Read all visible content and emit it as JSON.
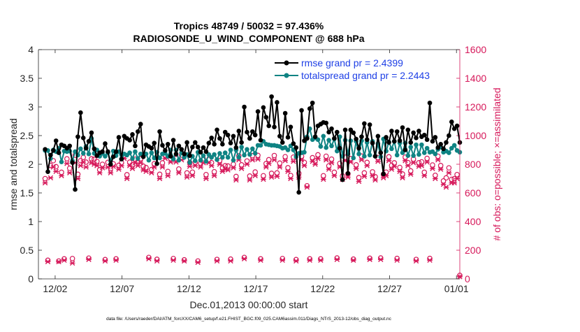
{
  "chart_data": {
    "type": "line",
    "title_line1": "Tropics 48749 / 50032 = 97.436%",
    "title_line2": "RADIOSONDE_U_WIND_COMPONENT @ 688 hPa",
    "xlabel": "Dec.01,2013 00:00:00 start",
    "ylabel_left": "rmse and totalspread",
    "ylabel_right": "# of obs: o=possible; ×=assimilated",
    "footer": "data file: /Users/raeder/DAI/ATM_forcXX/CAM6_setup/f.e21.FHIST_BGC.f09_025.CAM6assim.011/Diags_NTrS_2013-12/obs_diag_output.nc",
    "xlim": [
      0,
      31.5
    ],
    "ylim_left": [
      0,
      4
    ],
    "ylim_right": [
      0,
      1600
    ],
    "yticks_left": [
      0,
      0.5,
      1,
      1.5,
      2,
      2.5,
      3,
      3.5,
      4
    ],
    "ytick_labels_left": [
      "0",
      "0.5",
      "1",
      "1.5",
      "2",
      "2.5",
      "3",
      "3.5",
      "4"
    ],
    "yticks_right": [
      0,
      200,
      400,
      600,
      800,
      1000,
      1200,
      1400,
      1600
    ],
    "ytick_labels_right": [
      "0",
      "200",
      "400",
      "600",
      "800",
      "1000",
      "1200",
      "1400",
      "1600"
    ],
    "xticks": [
      1.25,
      6.25,
      11.25,
      16.25,
      21.25,
      26.25,
      31.25
    ],
    "xtick_labels": [
      "12/02",
      "12/07",
      "12/12",
      "12/17",
      "12/22",
      "12/27",
      "01/01"
    ],
    "legend": [
      "rmse grand pr = 2.4399",
      "totalspread grand pr = 2.2443"
    ],
    "colors": {
      "rmse": "#000000",
      "spread": "#0f8383",
      "obs": "#d6185a",
      "legend_text": "#1f40e6",
      "axis": "#262626"
    },
    "series": [
      {
        "name": "rmse",
        "values": [
          2.26,
          1.87,
          2.16,
          2.24,
          2.41,
          2.2,
          2.34,
          2.32,
          2.28,
          2.32,
          2.03,
          1.56,
          2.48,
          2.9,
          2.46,
          2.28,
          2.4,
          2.55,
          2.27,
          2.15,
          2.2,
          2.22,
          2.36,
          2.22,
          2.0,
          2.13,
          2.22,
          2.47,
          2.09,
          2.49,
          2.45,
          2.42,
          2.52,
          2.32,
          2.57,
          2.7,
          2.13,
          2.34,
          2.31,
          2.28,
          2.37,
          2.01,
          2.57,
          2.33,
          2.24,
          2.35,
          2.14,
          2.42,
          2.18,
          2.32,
          2.26,
          2.18,
          2.38,
          2.15,
          2.3,
          2.38,
          2.3,
          2.21,
          2.29,
          2.22,
          2.37,
          2.46,
          2.35,
          2.6,
          2.45,
          2.35,
          2.56,
          2.51,
          2.37,
          2.49,
          2.29,
          2.58,
          2.38,
          3.0,
          2.56,
          2.45,
          2.57,
          2.51,
          2.92,
          2.42,
          2.99,
          2.82,
          2.67,
          3.18,
          2.65,
          3.08,
          2.49,
          2.38,
          2.89,
          2.47,
          2.65,
          2.36,
          2.29,
          1.51,
          2.94,
          2.41,
          2.45,
          2.97,
          3.07,
          2.48,
          2.67,
          2.7,
          2.73,
          2.72,
          2.56,
          2.62,
          2.45,
          2.56,
          2.28,
          1.73,
          2.6,
          1.84,
          2.6,
          2.55,
          2.44,
          2.28,
          2.48,
          2.71,
          2.43,
          2.69,
          2.37,
          2.14,
          2.49,
          2.2,
          1.83,
          2.47,
          2.38,
          2.58,
          2.4,
          2.57,
          2.41,
          2.64,
          2.25,
          2.6,
          2.38,
          2.55,
          2.46,
          2.58,
          2.48,
          2.51,
          2.43,
          3.07,
          2.4,
          2.47,
          2.29,
          2.35,
          2.27,
          2.38,
          2.5,
          2.74,
          2.62,
          2.67,
          2.38
        ]
      },
      {
        "name": "totalspread",
        "values": [
          2.24,
          2.24,
          2.1,
          2.25,
          2.22,
          2.28,
          2.04,
          2.23,
          2.22,
          2.23,
          2.06,
          2.22,
          2.16,
          2.27,
          2.19,
          2.31,
          2.18,
          2.45,
          2.19,
          2.25,
          2.14,
          2.19,
          2.14,
          2.2,
          2.06,
          2.23,
          2.15,
          2.22,
          2.09,
          2.18,
          2.16,
          2.2,
          2.1,
          2.22,
          2.1,
          2.18,
          2.14,
          2.18,
          2.07,
          2.2,
          2.11,
          2.21,
          2.11,
          2.18,
          2.19,
          2.14,
          2.25,
          2.09,
          2.25,
          2.07,
          2.2,
          2.12,
          2.17,
          2.03,
          2.14,
          2.06,
          2.21,
          2.07,
          2.15,
          2.05,
          2.17,
          2.12,
          2.17,
          2.08,
          2.19,
          2.12,
          2.2,
          2.12,
          2.25,
          2.07,
          2.25,
          2.12,
          2.3,
          2.16,
          2.26,
          2.17,
          2.27,
          2.19,
          2.33,
          2.33,
          2.4,
          2.35,
          2.34,
          2.33,
          2.33,
          2.32,
          2.31,
          2.28,
          2.29,
          2.25,
          2.32,
          2.25,
          2.13,
          2.19,
          2.2,
          2.21,
          2.48,
          2.62,
          2.43,
          2.46,
          2.43,
          2.31,
          2.49,
          2.29,
          2.42,
          2.32,
          2.44,
          2.23,
          2.48,
          2.14,
          2.42,
          2.18,
          2.41,
          2.11,
          2.4,
          2.18,
          2.41,
          2.14,
          2.38,
          2.16,
          2.4,
          2.14,
          2.36,
          2.13,
          2.44,
          2.23,
          2.39,
          2.27,
          2.4,
          2.16,
          2.37,
          2.2,
          2.37,
          2.15,
          2.3,
          2.15,
          2.34,
          2.17,
          2.34,
          2.2,
          2.28,
          2.21,
          2.22,
          2.18,
          2.26,
          2.3,
          2.21,
          2.23,
          2.2,
          2.28,
          2.33,
          2.24,
          2.21
        ]
      },
      {
        "name": "obs_possible",
        "marker": "o",
        "values": [
          700,
          130,
          792,
          825,
          783,
          125,
          744,
          140,
          838,
          772,
          142,
          863,
          730,
          825,
          848,
          815,
          145,
          838,
          835,
          820,
          762,
          800,
          135,
          813,
          770,
          803,
          140,
          793,
          811,
          863,
          727,
          815,
          797,
          836,
          818,
          838,
          787,
          777,
          150,
          763,
          804,
          137,
          730,
          810,
          865,
          750,
          840,
          142,
          840,
          767,
          864,
          133,
          740,
          813,
          745,
          814,
          125,
          807,
          838,
          728,
          833,
          811,
          748,
          136,
          826,
          776,
          790,
          788,
          138,
          800,
          715,
          859,
          796,
          150,
          823,
          718,
          860,
          746,
          862,
          140,
          720,
          805,
          832,
          737,
          861,
          740,
          808,
          142,
          853,
          776,
          722,
          850,
          135,
          737,
          856,
          813,
          650,
          140,
          846,
          825,
          866,
          140,
          720,
          856,
          789,
          836,
          744,
          146,
          806,
          719,
          849,
          734,
          840,
          138,
          796,
          707,
          857,
          740,
          813,
          144,
          747,
          713,
          847,
          146,
          731,
          745,
          852,
          792,
          810,
          143,
          778,
          732,
          850,
          812,
          754,
          836,
          136,
          811,
          817,
          744,
          841,
          143,
          795,
          723,
          856,
          791,
          684,
          705,
          775,
          695,
          700,
          728,
          25
        ]
      },
      {
        "name": "obs_assimilated",
        "marker": "x",
        "values": [
          670,
          120,
          705,
          780,
          750,
          120,
          720,
          130,
          805,
          740,
          110,
          810,
          700,
          790,
          815,
          780,
          135,
          810,
          800,
          790,
          740,
          775,
          125,
          780,
          740,
          785,
          130,
          765,
          790,
          840,
          700,
          790,
          770,
          810,
          790,
          810,
          760,
          750,
          140,
          740,
          780,
          125,
          700,
          780,
          840,
          720,
          815,
          130,
          815,
          740,
          830,
          125,
          710,
          785,
          720,
          790,
          115,
          780,
          810,
          700,
          810,
          790,
          720,
          125,
          800,
          750,
          765,
          760,
          125,
          775,
          690,
          830,
          770,
          140,
          800,
          690,
          830,
          720,
          835,
          130,
          695,
          780,
          805,
          710,
          830,
          715,
          780,
          130,
          825,
          750,
          700,
          820,
          125,
          710,
          830,
          790,
          640,
          130,
          820,
          800,
          840,
          130,
          695,
          830,
          765,
          810,
          720,
          135,
          780,
          695,
          825,
          710,
          815,
          130,
          770,
          680,
          830,
          715,
          790,
          135,
          720,
          690,
          820,
          135,
          705,
          720,
          825,
          765,
          785,
          130,
          750,
          705,
          825,
          790,
          730,
          810,
          125,
          785,
          790,
          720,
          815,
          130,
          770,
          700,
          830,
          765,
          660,
          640,
          740,
          670,
          670,
          700,
          15
        ]
      }
    ]
  }
}
